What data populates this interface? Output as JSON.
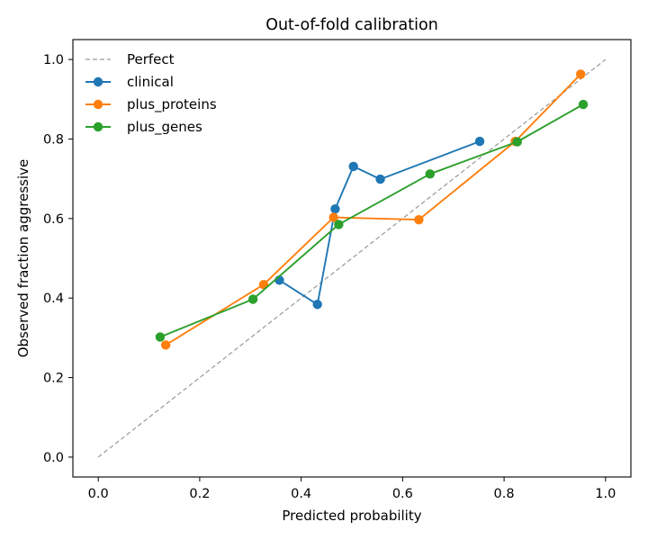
{
  "chart_data": {
    "type": "line",
    "title": "Out-of-fold calibration",
    "xlabel": "Predicted probability",
    "ylabel": "Observed fraction aggressive",
    "xlim": [
      -0.05,
      1.05
    ],
    "ylim": [
      -0.05,
      1.05
    ],
    "xticks": [
      "0.0",
      "0.2",
      "0.4",
      "0.6",
      "0.8",
      "1.0"
    ],
    "yticks": [
      "0.0",
      "0.2",
      "0.4",
      "0.6",
      "0.8",
      "1.0"
    ],
    "grid": false,
    "legend_position": "top-left",
    "reference": {
      "name": "Perfect",
      "x": [
        0,
        1
      ],
      "y": [
        0,
        1
      ],
      "color": "#999999",
      "style": "dashed"
    },
    "series": [
      {
        "name": "clinical",
        "color": "#1f77b4",
        "x": [
          0.357,
          0.432,
          0.467,
          0.503,
          0.556,
          0.752
        ],
        "y": [
          0.445,
          0.384,
          0.624,
          0.731,
          0.699,
          0.794
        ]
      },
      {
        "name": "plus_proteins",
        "color": "#ff7f0e",
        "x": [
          0.133,
          0.326,
          0.464,
          0.632,
          0.822,
          0.951
        ],
        "y": [
          0.282,
          0.434,
          0.603,
          0.597,
          0.794,
          0.963
        ]
      },
      {
        "name": "plus_genes",
        "color": "#2ca02c",
        "x": [
          0.122,
          0.305,
          0.474,
          0.654,
          0.826,
          0.956
        ],
        "y": [
          0.302,
          0.397,
          0.585,
          0.712,
          0.793,
          0.887
        ]
      }
    ]
  }
}
